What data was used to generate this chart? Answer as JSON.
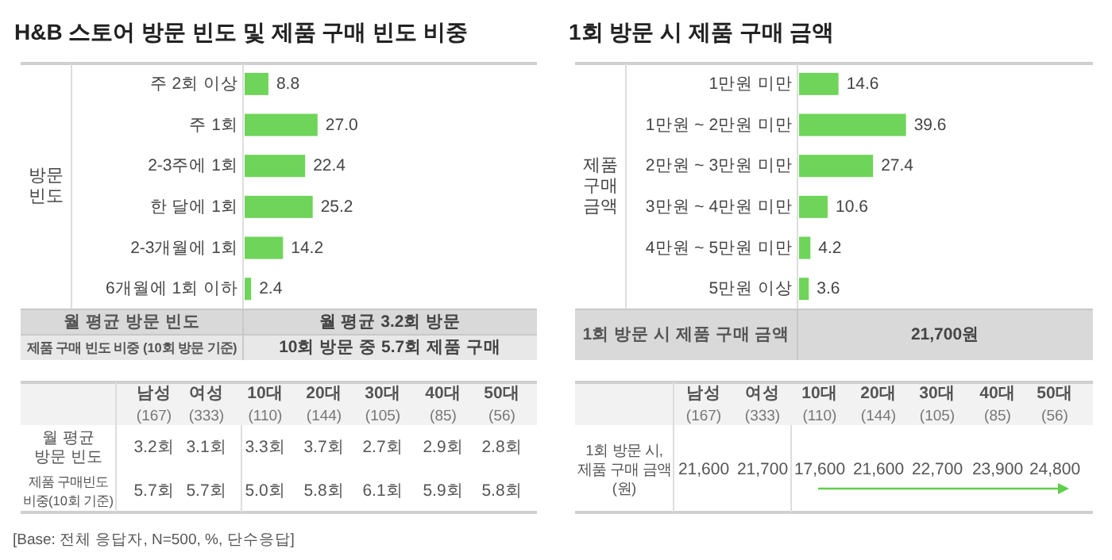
{
  "chart_data": [
    {
      "type": "bar",
      "orientation": "horizontal",
      "title": "H&B 스토어 방문 빈도 및 제품 구매 빈도 비중",
      "ylabel": "방문\n빈도",
      "categories": [
        "주 2회 이상",
        "주 1회",
        "2-3주에 1회",
        "한 달에 1회",
        "2-3개월에 1회",
        "6개월에 1회 이하"
      ],
      "values": [
        8.8,
        27.0,
        22.4,
        25.2,
        14.2,
        2.4
      ],
      "value_labels": [
        "8.8",
        "27.0",
        "22.4",
        "25.2",
        "14.2",
        "2.4"
      ],
      "color": "#6fd45a",
      "annotations": [
        "월 평균 방문 빈도",
        "월 평균 3.2회 방문",
        "제품 구매 빈도 비중 (10회 방문 기준)",
        "10회 방문 중 5.7회 제품 구매"
      ]
    },
    {
      "type": "bar",
      "orientation": "horizontal",
      "title": "1회 방문 시 제품 구매 금액",
      "ylabel": "제품\n구매\n금액",
      "categories": [
        "1만원 미만",
        "1만원 ~ 2만원 미만",
        "2만원 ~ 3만원 미만",
        "3만원 ~ 4만원 미만",
        "4만원 ~ 5만원 미만",
        "5만원 이상"
      ],
      "values": [
        14.6,
        39.6,
        27.4,
        10.6,
        4.2,
        3.6
      ],
      "value_labels": [
        "14.6",
        "39.6",
        "27.4",
        "10.6",
        "4.2",
        "3.6"
      ],
      "color": "#6fd45a",
      "annotations": [
        "1회 방문 시 제품 구매 금액",
        "21,700원"
      ]
    },
    {
      "type": "heatmap",
      "categories": [
        "남성\n(167)",
        "여성\n(333)",
        "10대\n(110)",
        "20대\n(144)",
        "30대\n(105)",
        "40대\n(85)",
        "50대\n(56)"
      ],
      "y_categories": [
        "월 평균\n방문 빈도",
        "제품 구매빈도\n비중(10회 기준)"
      ],
      "cells": [
        [
          3.2,
          3.1,
          3.3,
          3.7,
          2.7,
          2.9,
          2.8
        ],
        [
          5.7,
          5.7,
          5.0,
          5.8,
          6.1,
          5.9,
          5.8
        ]
      ],
      "cell_labels": [
        [
          "3.2회",
          "3.1회",
          "3.3회",
          "3.7회",
          "2.7회",
          "2.9회",
          "2.8회"
        ],
        [
          "5.7회",
          "5.7회",
          "5.0회",
          "5.8회",
          "6.1회",
          "5.9회",
          "5.8회"
        ]
      ],
      "annotations": [
        "[Base: 전체 응답자, N=500, %, 단수응답]"
      ]
    },
    {
      "type": "heatmap",
      "categories": [
        "남성\n(167)",
        "여성\n(333)",
        "10대\n(110)",
        "20대\n(144)",
        "30대\n(105)",
        "40대\n(85)",
        "50대\n(56)"
      ],
      "y_categories": [
        "1회 방문 시,\n제품 구매 금액\n(원)"
      ],
      "cells": [
        [
          21600,
          21700,
          17600,
          21600,
          22700,
          23900,
          24800
        ]
      ],
      "cell_labels": [
        [
          "21,600",
          "21,700",
          "17,600",
          "21,600",
          "22,700",
          "23,900",
          "24,800"
        ]
      ]
    }
  ]
}
